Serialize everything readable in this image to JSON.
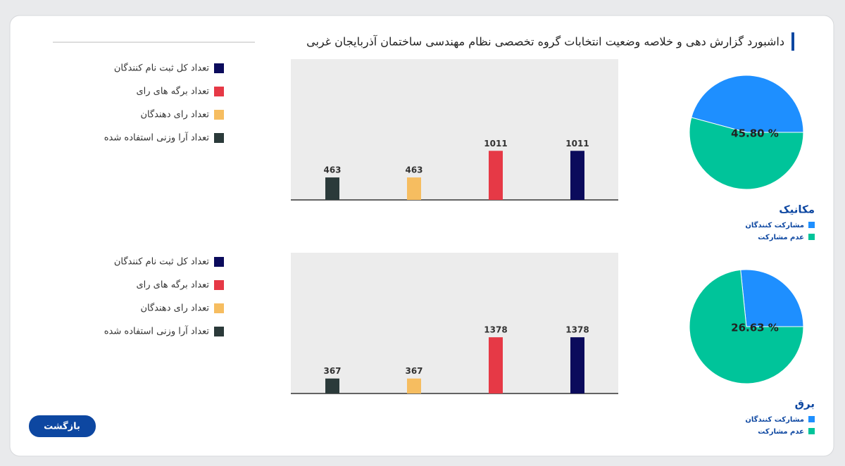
{
  "header": {
    "title": "داشبورد گزارش دهی و خلاصه وضعیت انتخابات گروه تخصصی نظام مهندسی ساختمان آذربایجان غربی"
  },
  "button": {
    "label": "بازگشت"
  },
  "chart_data": [
    {
      "type": "pie",
      "title": "مکانیک",
      "categories": [
        "مشارکت کنندگان",
        "عدم مشارکت"
      ],
      "values": [
        45.8,
        54.2
      ],
      "value_labels": [
        "45.80 %",
        null
      ],
      "colors": [
        "#1e8fff",
        "#00c49a"
      ]
    },
    {
      "type": "bar",
      "categories": [
        "تعداد کل ثبت نام کنندگان",
        "تعداد برگه های رای",
        "تعداد رای دهندگان",
        "تعداد آرا وزنی استفاده شده"
      ],
      "values": [
        1011,
        1011,
        463,
        463
      ],
      "colors": [
        "#0b0b5c",
        "#e63946",
        "#f6bd60",
        "#2b3a3a"
      ],
      "ylim": [
        0,
        2900
      ]
    },
    {
      "type": "pie",
      "title": "برق",
      "categories": [
        "مشارکت کنندگان",
        "عدم مشارکت"
      ],
      "values": [
        26.63,
        73.37
      ],
      "value_labels": [
        "26.63 %",
        null
      ],
      "colors": [
        "#1e8fff",
        "#00c49a"
      ]
    },
    {
      "type": "bar",
      "categories": [
        "تعداد کل ثبت نام کنندگان",
        "تعداد برگه های رای",
        "تعداد رای دهندگان",
        "تعداد آرا وزنی استفاده شده"
      ],
      "values": [
        1378,
        1378,
        367,
        367
      ],
      "colors": [
        "#0b0b5c",
        "#e63946",
        "#f6bd60",
        "#2b3a3a"
      ],
      "ylim": [
        0,
        3450
      ]
    }
  ]
}
